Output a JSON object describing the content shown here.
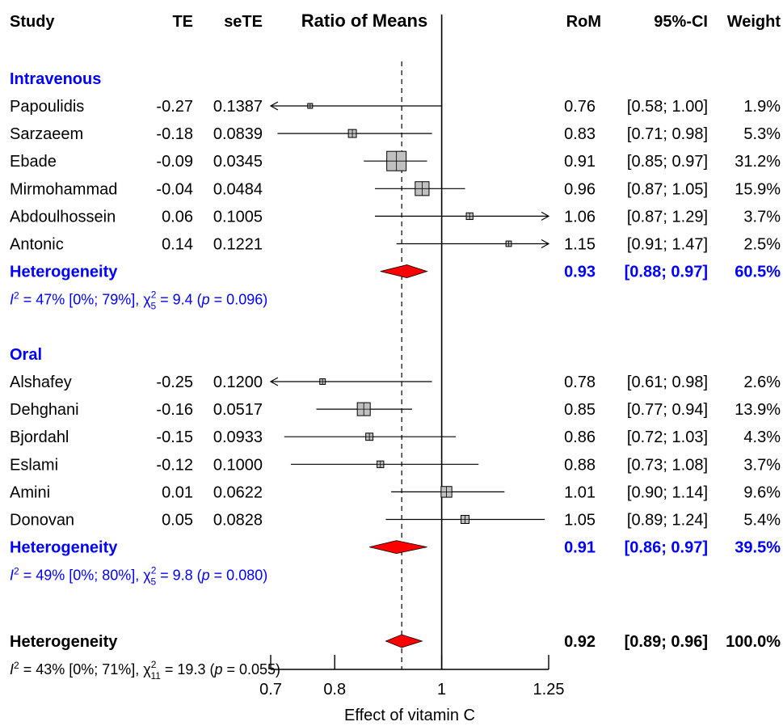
{
  "headers": {
    "study": "Study",
    "te": "TE",
    "sete": "seTE",
    "plot_title": "Ratio of Means",
    "rom": "RoM",
    "ci": "95%-CI",
    "weight": "Weight"
  },
  "chart_data": {
    "type": "forest",
    "xlabel": "Effect of vitamin C",
    "log_scale": true,
    "xlim": [
      0.7,
      1.25
    ],
    "ticks": [
      "0.7",
      "0.8",
      "1",
      "1.25"
    ],
    "reference_line": 1,
    "overall_line": 0.92,
    "subgroups": [
      {
        "name": "Intravenous",
        "studies": [
          {
            "study": "Papoulidis",
            "te": "-0.27",
            "sete": "0.1387",
            "rom": "0.76",
            "ci": "[0.58; 1.00]",
            "weight": "1.9%",
            "est": 0.76,
            "lo": 0.58,
            "hi": 1.0
          },
          {
            "study": "Sarzaeem",
            "te": "-0.18",
            "sete": "0.0839",
            "rom": "0.83",
            "ci": "[0.71; 0.98]",
            "weight": "5.3%",
            "est": 0.83,
            "lo": 0.71,
            "hi": 0.98
          },
          {
            "study": "Ebade",
            "te": "-0.09",
            "sete": "0.0345",
            "rom": "0.91",
            "ci": "[0.85; 0.97]",
            "weight": "31.2%",
            "est": 0.91,
            "lo": 0.85,
            "hi": 0.97
          },
          {
            "study": "Mirmohammad",
            "te": "-0.04",
            "sete": "0.0484",
            "rom": "0.96",
            "ci": "[0.87; 1.05]",
            "weight": "15.9%",
            "est": 0.96,
            "lo": 0.87,
            "hi": 1.05
          },
          {
            "study": "Abdoulhossein",
            "te": "0.06",
            "sete": "0.1005",
            "rom": "1.06",
            "ci": "[0.87; 1.29]",
            "weight": "3.7%",
            "est": 1.06,
            "lo": 0.87,
            "hi": 1.29
          },
          {
            "study": "Antonic",
            "te": "0.14",
            "sete": "0.1221",
            "rom": "1.15",
            "ci": "[0.91; 1.47]",
            "weight": "2.5%",
            "est": 1.15,
            "lo": 0.91,
            "hi": 1.47
          }
        ],
        "summary": {
          "label": "Heterogeneity",
          "rom": "0.93",
          "ci": "[0.88; 0.97]",
          "weight": "60.5%",
          "est": 0.93,
          "lo": 0.88,
          "hi": 0.97
        },
        "het": {
          "i2": "47% [0%; 79%]",
          "df": "5",
          "chi2": "9.4",
          "p": "0.096"
        }
      },
      {
        "name": "Oral",
        "studies": [
          {
            "study": "Alshafey",
            "te": "-0.25",
            "sete": "0.1200",
            "rom": "0.78",
            "ci": "[0.61; 0.98]",
            "weight": "2.6%",
            "est": 0.78,
            "lo": 0.61,
            "hi": 0.98
          },
          {
            "study": "Dehghani",
            "te": "-0.16",
            "sete": "0.0517",
            "rom": "0.85",
            "ci": "[0.77; 0.94]",
            "weight": "13.9%",
            "est": 0.85,
            "lo": 0.77,
            "hi": 0.94
          },
          {
            "study": "Bjordahl",
            "te": "-0.15",
            "sete": "0.0933",
            "rom": "0.86",
            "ci": "[0.72; 1.03]",
            "weight": "4.3%",
            "est": 0.86,
            "lo": 0.72,
            "hi": 1.03
          },
          {
            "study": "Eslami",
            "te": "-0.12",
            "sete": "0.1000",
            "rom": "0.88",
            "ci": "[0.73; 1.08]",
            "weight": "3.7%",
            "est": 0.88,
            "lo": 0.73,
            "hi": 1.08
          },
          {
            "study": "Amini",
            "te": "0.01",
            "sete": "0.0622",
            "rom": "1.01",
            "ci": "[0.90; 1.14]",
            "weight": "9.6%",
            "est": 1.01,
            "lo": 0.9,
            "hi": 1.14
          },
          {
            "study": "Donovan",
            "te": "0.05",
            "sete": "0.0828",
            "rom": "1.05",
            "ci": "[0.89; 1.24]",
            "weight": "5.4%",
            "est": 1.05,
            "lo": 0.89,
            "hi": 1.24
          }
        ],
        "summary": {
          "label": "Heterogeneity",
          "rom": "0.91",
          "ci": "[0.86; 0.97]",
          "weight": "39.5%",
          "est": 0.91,
          "lo": 0.86,
          "hi": 0.97
        },
        "het": {
          "i2": "49% [0%; 80%]",
          "df": "5",
          "chi2": "9.8",
          "p": "0.080"
        }
      }
    ],
    "overall": {
      "label": "Heterogeneity",
      "rom": "0.92",
      "ci": "[0.89; 0.96]",
      "weight": "100.0%",
      "est": 0.92,
      "lo": 0.89,
      "hi": 0.96,
      "het": {
        "i2": "43% [0%; 71%]",
        "df": "11",
        "chi2": "19.3",
        "p": "0.055"
      }
    },
    "colors": {
      "subgroup_text": "#0000ff",
      "diamond": "#ff0000",
      "box_fill": "#c0c0c0"
    }
  }
}
